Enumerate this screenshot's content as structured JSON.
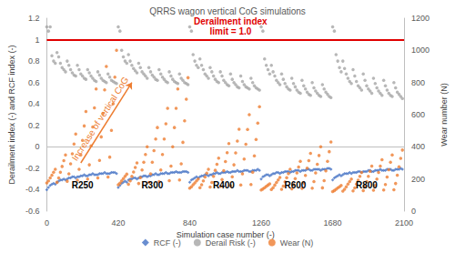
{
  "chart_data": {
    "type": "scatter",
    "title": "QRRS wagon vertical CoG simulations",
    "x_label": "Simulation case number (-)",
    "y_label": "Derailment index (-) and RCF index (-)",
    "y2_label": "Wear number (N)",
    "xlim": [
      0,
      2100
    ],
    "xticks": [
      0,
      420,
      840,
      1260,
      1680,
      2100
    ],
    "ylim": [
      -0.6,
      1.2
    ],
    "yticks": [
      -0.6,
      -0.4,
      -0.2,
      0,
      0.2,
      0.4,
      0.6,
      0.8,
      1,
      1.2
    ],
    "y2lim": [
      0,
      1200
    ],
    "y2ticks": [
      0,
      200,
      400,
      600,
      800,
      1000,
      1200
    ],
    "grid": false,
    "legend": "bottom",
    "x": [
      0,
      10,
      20,
      30,
      40,
      50,
      60,
      70,
      80,
      90,
      100,
      110,
      120,
      130,
      140,
      150,
      160,
      170,
      180,
      190,
      200,
      210,
      220,
      230,
      240,
      250,
      260,
      270,
      280,
      290,
      300,
      310,
      320,
      330,
      340,
      350,
      360,
      370,
      380,
      390,
      400,
      410,
      420,
      430,
      440,
      450,
      460,
      470,
      480,
      490,
      500,
      510,
      520,
      530,
      540,
      550,
      560,
      570,
      580,
      590,
      600,
      610,
      620,
      630,
      640,
      650,
      660,
      670,
      680,
      690,
      700,
      710,
      720,
      730,
      740,
      750,
      760,
      770,
      780,
      790,
      800,
      810,
      820,
      830,
      840,
      850,
      860,
      870,
      880,
      890,
      900,
      910,
      920,
      930,
      940,
      950,
      960,
      970,
      980,
      990,
      1000,
      1010,
      1020,
      1030,
      1040,
      1050,
      1060,
      1070,
      1080,
      1090,
      1100,
      1110,
      1120,
      1130,
      1140,
      1150,
      1160,
      1170,
      1180,
      1190,
      1200,
      1210,
      1220,
      1230,
      1240,
      1250,
      1260,
      1270,
      1280,
      1290,
      1300,
      1310,
      1320,
      1330,
      1340,
      1350,
      1360,
      1370,
      1380,
      1390,
      1400,
      1410,
      1420,
      1430,
      1440,
      1450,
      1460,
      1470,
      1480,
      1490,
      1500,
      1510,
      1520,
      1530,
      1540,
      1550,
      1560,
      1570,
      1580,
      1590,
      1600,
      1610,
      1620,
      1630,
      1640,
      1650,
      1660,
      1670,
      1680,
      1690,
      1700,
      1710,
      1720,
      1730,
      1740,
      1750,
      1760,
      1770,
      1780,
      1790,
      1800,
      1810,
      1820,
      1830,
      1840,
      1850,
      1860,
      1870,
      1880,
      1890,
      1900,
      1910,
      1920,
      1930,
      1940,
      1950,
      1960,
      1970,
      1980,
      1990,
      2000,
      2010,
      2020,
      2030,
      2040,
      2050,
      2060,
      2070,
      2080,
      2090
    ],
    "series": [
      {
        "name": "RCF (-)",
        "color": "#4472c4",
        "marker": "diamond",
        "values": [
          -0.4,
          -0.38,
          -0.36,
          -0.35,
          -0.34,
          -0.35,
          -0.33,
          -0.32,
          -0.31,
          -0.31,
          -0.3,
          -0.31,
          -0.3,
          -0.29,
          -0.29,
          -0.28,
          -0.28,
          -0.29,
          -0.28,
          -0.28,
          -0.27,
          -0.27,
          -0.26,
          -0.27,
          -0.27,
          -0.26,
          -0.26,
          -0.25,
          -0.26,
          -0.26,
          -0.26,
          -0.25,
          -0.25,
          -0.25,
          -0.24,
          -0.25,
          -0.25,
          -0.25,
          -0.24,
          -0.24,
          -0.24,
          -0.25,
          -0.38,
          -0.36,
          -0.34,
          -0.33,
          -0.32,
          -0.33,
          -0.31,
          -0.3,
          -0.3,
          -0.29,
          -0.29,
          -0.3,
          -0.29,
          -0.28,
          -0.28,
          -0.27,
          -0.27,
          -0.28,
          -0.27,
          -0.27,
          -0.26,
          -0.26,
          -0.25,
          -0.26,
          -0.26,
          -0.25,
          -0.25,
          -0.25,
          -0.24,
          -0.25,
          -0.25,
          -0.24,
          -0.24,
          -0.24,
          -0.23,
          -0.24,
          -0.24,
          -0.24,
          -0.23,
          -0.23,
          -0.23,
          -0.24,
          -0.33,
          -0.31,
          -0.3,
          -0.29,
          -0.28,
          -0.29,
          -0.28,
          -0.27,
          -0.27,
          -0.26,
          -0.26,
          -0.27,
          -0.26,
          -0.26,
          -0.25,
          -0.25,
          -0.24,
          -0.25,
          -0.25,
          -0.24,
          -0.24,
          -0.24,
          -0.23,
          -0.24,
          -0.24,
          -0.23,
          -0.23,
          -0.23,
          -0.22,
          -0.23,
          -0.23,
          -0.23,
          -0.22,
          -0.22,
          -0.22,
          -0.23,
          -0.23,
          -0.22,
          -0.22,
          -0.22,
          -0.21,
          -0.22,
          -0.3,
          -0.28,
          -0.27,
          -0.26,
          -0.26,
          -0.27,
          -0.26,
          -0.25,
          -0.25,
          -0.24,
          -0.24,
          -0.25,
          -0.24,
          -0.24,
          -0.23,
          -0.23,
          -0.23,
          -0.24,
          -0.23,
          -0.23,
          -0.22,
          -0.22,
          -0.22,
          -0.23,
          -0.22,
          -0.22,
          -0.22,
          -0.21,
          -0.21,
          -0.22,
          -0.22,
          -0.21,
          -0.21,
          -0.21,
          -0.21,
          -0.22,
          -0.21,
          -0.21,
          -0.21,
          -0.2,
          -0.2,
          -0.21,
          -0.31,
          -0.29,
          -0.28,
          -0.27,
          -0.26,
          -0.27,
          -0.26,
          -0.25,
          -0.25,
          -0.25,
          -0.24,
          -0.25,
          -0.24,
          -0.24,
          -0.24,
          -0.23,
          -0.23,
          -0.24,
          -0.23,
          -0.23,
          -0.23,
          -0.22,
          -0.22,
          -0.23,
          -0.23,
          -0.22,
          -0.22,
          -0.22,
          -0.21,
          -0.22,
          -0.22,
          -0.22,
          -0.21,
          -0.21,
          -0.21,
          -0.22,
          -0.22,
          -0.21,
          -0.21,
          -0.21,
          -0.2,
          -0.21
        ]
      },
      {
        "name": "Derail Risk (-)",
        "color": "#a5a5a5",
        "marker": "circle",
        "values": [
          1.12,
          1.08,
          1.12,
          0.85,
          0.8,
          0.78,
          0.88,
          0.84,
          0.78,
          0.74,
          0.72,
          0.7,
          0.8,
          0.76,
          0.72,
          0.69,
          0.67,
          0.66,
          0.76,
          0.72,
          0.68,
          0.66,
          0.64,
          0.63,
          0.72,
          0.69,
          0.66,
          0.64,
          0.62,
          0.61,
          0.7,
          0.67,
          0.64,
          0.62,
          0.61,
          0.6,
          0.68,
          0.65,
          0.62,
          0.61,
          0.6,
          0.59,
          1.12,
          1.08,
          0.9,
          0.84,
          0.8,
          0.78,
          0.86,
          0.8,
          0.76,
          0.73,
          0.71,
          0.69,
          0.78,
          0.74,
          0.7,
          0.68,
          0.66,
          0.64,
          0.74,
          0.7,
          0.67,
          0.65,
          0.63,
          0.62,
          0.72,
          0.68,
          0.65,
          0.63,
          0.61,
          0.6,
          0.7,
          0.66,
          0.63,
          0.61,
          0.6,
          0.59,
          0.68,
          0.64,
          0.62,
          0.6,
          0.59,
          0.58,
          1.12,
          1.08,
          0.86,
          0.8,
          0.76,
          0.74,
          0.82,
          0.76,
          0.72,
          0.68,
          0.66,
          0.64,
          0.74,
          0.7,
          0.66,
          0.63,
          0.61,
          0.6,
          0.7,
          0.66,
          0.62,
          0.6,
          0.58,
          0.57,
          0.68,
          0.63,
          0.6,
          0.58,
          0.56,
          0.55,
          0.66,
          0.61,
          0.58,
          0.56,
          0.55,
          0.54,
          0.64,
          0.6,
          0.57,
          0.55,
          0.54,
          0.53,
          1.12,
          1.08,
          0.82,
          0.76,
          0.72,
          0.68,
          0.76,
          0.7,
          0.66,
          0.62,
          0.6,
          0.58,
          0.68,
          0.63,
          0.59,
          0.56,
          0.54,
          0.53,
          0.64,
          0.59,
          0.56,
          0.53,
          0.51,
          0.5,
          0.62,
          0.57,
          0.54,
          0.51,
          0.49,
          0.48,
          0.6,
          0.55,
          0.52,
          0.5,
          0.48,
          0.47,
          0.58,
          0.54,
          0.51,
          0.49,
          0.47,
          0.46,
          1.12,
          1.08,
          0.86,
          0.8,
          0.74,
          0.7,
          0.8,
          0.73,
          0.68,
          0.64,
          0.61,
          0.59,
          0.72,
          0.66,
          0.61,
          0.57,
          0.55,
          0.53,
          0.68,
          0.62,
          0.57,
          0.54,
          0.52,
          0.5,
          0.64,
          0.59,
          0.55,
          0.52,
          0.5,
          0.48,
          0.62,
          0.57,
          0.53,
          0.5,
          0.48,
          0.47,
          0.6,
          0.55,
          0.51,
          0.49,
          0.47,
          0.45
        ]
      },
      {
        "name": "Wear (N)",
        "color": "#ed7d31",
        "marker": "circle",
        "axis": "y2",
        "values": [
          175,
          188,
          206,
          224,
          242,
          260,
          179,
          206,
          242,
          278,
          314,
          350,
          186,
          232,
          294,
          356,
          418,
          480,
          193,
          260,
          350,
          440,
          530,
          620,
          200,
          288,
          406,
          524,
          642,
          760,
          207,
          316,
          462,
          608,
          754,
          900,
          212,
          336,
          502,
          668,
          834,
          1000,
          164,
          174,
          188,
          202,
          216,
          230,
          167,
          188,
          216,
          244,
          272,
          300,
          172,
          208,
          256,
          304,
          352,
          400,
          178,
          232,
          304,
          376,
          448,
          520,
          184,
          256,
          352,
          448,
          544,
          640,
          190,
          280,
          400,
          520,
          640,
          760,
          194,
          294,
          428,
          562,
          696,
          830,
          143,
          152,
          164,
          176,
          188,
          200,
          146,
          164,
          188,
          212,
          236,
          260,
          150,
          178,
          216,
          254,
          292,
          330,
          154,
          196,
          252,
          308,
          364,
          420,
          158,
          214,
          288,
          362,
          436,
          510,
          163,
          232,
          324,
          416,
          508,
          600,
          166,
          242,
          344,
          446,
          548,
          650,
          132,
          138,
          146,
          154,
          162,
          170,
          134,
          146,
          162,
          178,
          194,
          210,
          136,
          156,
          182,
          208,
          234,
          260,
          139,
          166,
          202,
          238,
          274,
          310,
          141,
          176,
          222,
          268,
          314,
          360,
          143,
          184,
          238,
          292,
          346,
          400,
          145,
          190,
          250,
          310,
          370,
          430,
          122,
          128,
          136,
          144,
          152,
          160,
          124,
          136,
          152,
          168,
          184,
          200,
          126,
          144,
          168,
          192,
          216,
          240,
          128,
          152,
          184,
          216,
          248,
          280,
          130,
          160,
          200,
          240,
          280,
          320,
          132,
          166,
          212,
          258,
          304,
          350,
          133,
          172,
          224,
          276,
          328,
          380
        ]
      }
    ],
    "annotations": [
      {
        "type": "hline",
        "y": 1,
        "color": "#e00000"
      },
      {
        "text": "Derailment index\nlimit = 1.0",
        "x": 1080,
        "y": 1.12,
        "color": "#e00000"
      },
      {
        "text": "Increase of vertical CoG",
        "from": [
          200,
          -0.15
        ],
        "to": [
          500,
          0.6
        ],
        "color": "#ed7d31"
      },
      {
        "text": "R250",
        "x": 210,
        "y": -0.36,
        "color": "#000000"
      },
      {
        "text": "R300",
        "x": 620,
        "y": -0.36,
        "color": "#000000"
      },
      {
        "text": "R400",
        "x": 1040,
        "y": -0.36,
        "color": "#000000"
      },
      {
        "text": "R600",
        "x": 1460,
        "y": -0.36,
        "color": "#000000"
      },
      {
        "text": "R800",
        "x": 1880,
        "y": -0.36,
        "color": "#000000"
      }
    ]
  }
}
